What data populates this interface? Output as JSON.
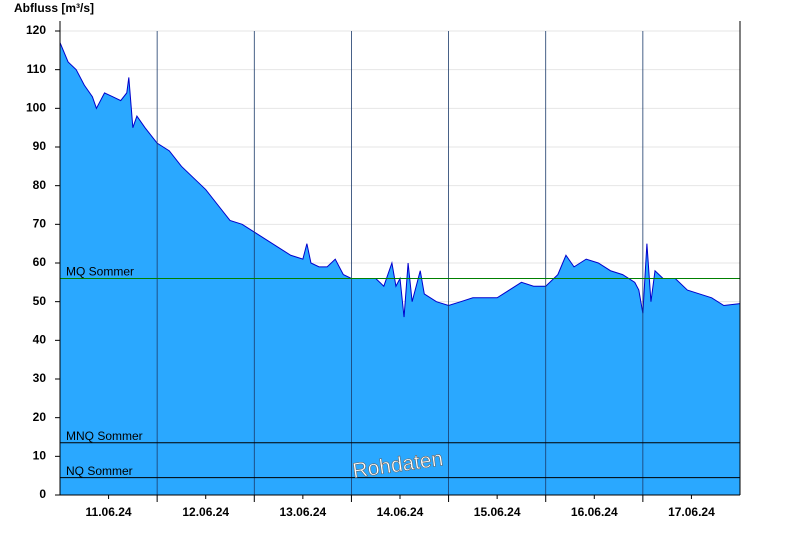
{
  "chart_data": {
    "type": "area",
    "y_label": "Abfluss [m³/s]",
    "x": [
      0,
      2,
      4,
      6,
      8,
      9,
      11,
      13,
      15,
      16.5,
      17,
      18,
      19,
      21,
      24,
      27,
      30,
      33,
      36,
      39,
      42,
      45,
      48,
      51,
      54,
      57,
      60,
      61,
      62,
      64,
      66,
      68,
      70,
      72,
      75,
      78,
      80,
      82,
      83,
      84,
      85,
      86,
      87,
      89,
      90,
      93,
      96,
      99,
      102,
      105,
      108,
      111,
      114,
      117,
      120,
      123,
      125,
      127,
      130,
      133,
      136,
      139,
      142,
      143,
      144,
      145,
      146,
      147,
      149,
      152,
      155,
      158,
      161,
      164,
      168
    ],
    "values": [
      117,
      112,
      110,
      106,
      103,
      100,
      104,
      103,
      102,
      104,
      108,
      95,
      98,
      95,
      91,
      89,
      85,
      82,
      79,
      75,
      71,
      70,
      68,
      66,
      64,
      62,
      61,
      65,
      60,
      59,
      59,
      61,
      57,
      56,
      56,
      56,
      54,
      60,
      54,
      56,
      46,
      60,
      50,
      58,
      52,
      50,
      49,
      50,
      51,
      51,
      51,
      53,
      55,
      54,
      54,
      57,
      62,
      59,
      61,
      60,
      58,
      57,
      55,
      53,
      47,
      65,
      50,
      58,
      56,
      56,
      53,
      52,
      51,
      49,
      49.5
    ],
    "color": "#2aa8ff",
    "line_color": "#0000cc",
    "xlim": [
      0,
      168
    ],
    "xticks": [
      {
        "value": 12,
        "label": "11.06.24"
      },
      {
        "value": 36,
        "label": "12.06.24"
      },
      {
        "value": 60,
        "label": "13.06.24"
      },
      {
        "value": 84,
        "label": "14.06.24"
      },
      {
        "value": 108,
        "label": "15.06.24"
      },
      {
        "value": 132,
        "label": "16.06.24"
      },
      {
        "value": 156,
        "label": "17.06.24"
      }
    ],
    "xgrid": [
      24,
      48,
      72,
      96,
      120,
      144
    ],
    "ylim": [
      0,
      120
    ],
    "yticks": [
      0,
      10,
      20,
      30,
      40,
      50,
      60,
      70,
      80,
      90,
      100,
      110,
      120
    ],
    "grid": true,
    "annotations": [
      {
        "label": "MQ Sommer",
        "value": 56,
        "color": "#008000"
      },
      {
        "label": "MNQ Sommer",
        "value": 13.5,
        "color": "#000000"
      },
      {
        "label": "NQ Sommer",
        "value": 4.5,
        "color": "#000000"
      }
    ],
    "watermark": "Rohdaten"
  }
}
